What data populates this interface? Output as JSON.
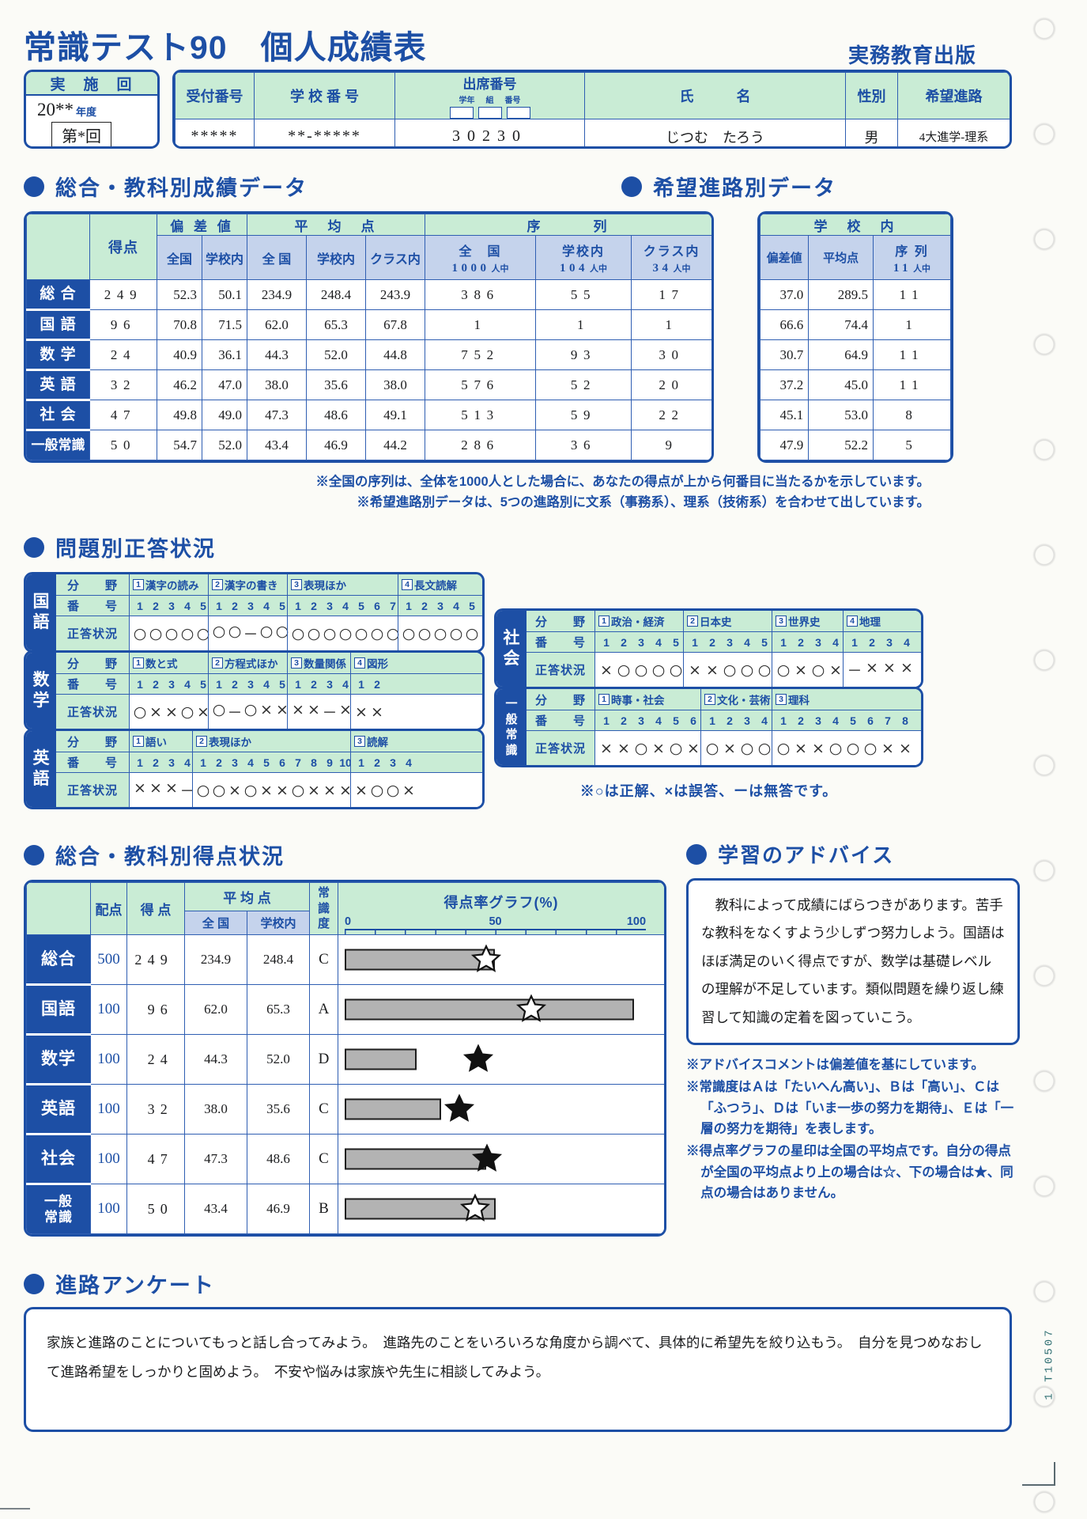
{
  "page": {
    "title": "常識テスト90　個人成績表",
    "publisher": "実務教育出版",
    "side_code": "1 T10507"
  },
  "round_box": {
    "label": "実　施　回",
    "year": "20**",
    "year_unit": "年度",
    "round": "第*回"
  },
  "id_table": {
    "col_reception": "受付番号",
    "col_school": "学 校 番 号",
    "col_attendance": "出席番号",
    "sub_grade": "学年",
    "sub_class": "組",
    "sub_number": "番号",
    "col_name": "氏　　　名",
    "col_sex": "性別",
    "col_course": "希望進路",
    "reception": "*****",
    "school": "**-*****",
    "attendance": "30230",
    "name": "じつむ　たろう",
    "sex": "男",
    "course": "4大進学-理系"
  },
  "seiseki": {
    "title": "総合・教科別成績データ",
    "h": {
      "tokuten": "得点",
      "hensachi": "偏 差 値",
      "heikin": "平　均　点",
      "joretsu": "序　　　列",
      "zenkoku": "全国",
      "gakkonai": "学校内",
      "zenkoku2": "全 国",
      "gakkonai2": "学校内",
      "kurasunai": "クラス内",
      "jo1": {
        "label": "全　国",
        "n": "1000",
        "unit": "人中"
      },
      "jo2": {
        "label": "学校内",
        "n": "104",
        "unit": "人中"
      },
      "jo3": {
        "label": "クラス内",
        "n": "34",
        "unit": "人中"
      }
    },
    "rows": [
      {
        "subject": "総 合",
        "tokuten": "249",
        "hz": "52.3",
        "hg": "50.1",
        "az": "234.9",
        "ag": "248.4",
        "ac": "243.9",
        "jz": "386",
        "jg": "55",
        "jc": "17"
      },
      {
        "subject": "国 語",
        "tokuten": "96",
        "hz": "70.8",
        "hg": "71.5",
        "az": "62.0",
        "ag": "65.3",
        "ac": "67.8",
        "jz": "1",
        "jg": "1",
        "jc": "1"
      },
      {
        "subject": "数 学",
        "tokuten": "24",
        "hz": "40.9",
        "hg": "36.1",
        "az": "44.3",
        "ag": "52.0",
        "ac": "44.8",
        "jz": "752",
        "jg": "93",
        "jc": "30"
      },
      {
        "subject": "英 語",
        "tokuten": "32",
        "hz": "46.2",
        "hg": "47.0",
        "az": "38.0",
        "ag": "35.6",
        "ac": "38.0",
        "jz": "576",
        "jg": "52",
        "jc": "20"
      },
      {
        "subject": "社 会",
        "tokuten": "47",
        "hz": "49.8",
        "hg": "49.0",
        "az": "47.3",
        "ag": "48.6",
        "ac": "49.1",
        "jz": "513",
        "jg": "59",
        "jc": "22"
      },
      {
        "subject": "一般常識",
        "tokuten": "50",
        "hz": "54.7",
        "hg": "52.0",
        "az": "43.4",
        "ag": "46.9",
        "ac": "44.2",
        "jz": "286",
        "jg": "36",
        "jc": "9"
      }
    ]
  },
  "shinro": {
    "title": "希望進路別データ",
    "h": {
      "gakkonai": "学　校　内",
      "hensachi": "偏差値",
      "heikin": "平均点",
      "jo": {
        "label": "序 列",
        "n": "11",
        "unit": "人中"
      }
    },
    "rows": [
      {
        "hensachi": "37.0",
        "heikin": "289.5",
        "joretsu": "11"
      },
      {
        "hensachi": "66.6",
        "heikin": "74.4",
        "joretsu": "1"
      },
      {
        "hensachi": "30.7",
        "heikin": "64.9",
        "joretsu": "11"
      },
      {
        "hensachi": "37.2",
        "heikin": "45.0",
        "joretsu": "11"
      },
      {
        "hensachi": "45.1",
        "heikin": "53.0",
        "joretsu": "8"
      },
      {
        "hensachi": "47.9",
        "heikin": "52.2",
        "joretsu": "5"
      }
    ]
  },
  "notes1": {
    "line1": "※全国の序列は、全体を1000人とした場合に、あなたの得点が上から何番目に当たるかを示しています。",
    "line2": "※希望進路別データは、5つの進路別に文系（事務系）、理系（技術系）を合わせて出しています。"
  },
  "seito": {
    "title": "問題別正答状況",
    "row_labels": {
      "bunya": "分　　野",
      "bango": "番　　号",
      "seito": "正答状況"
    },
    "legend": "※○は正解、×は誤答、ーは無答です。",
    "blocks": [
      {
        "subject": "国語",
        "sections": [
          {
            "num": "1",
            "name": "漢字の読み",
            "nums": [
              "1",
              "2",
              "3",
              "4",
              "5"
            ],
            "marks": "○○○○○"
          },
          {
            "num": "2",
            "name": "漢字の書き",
            "nums": [
              "1",
              "2",
              "3",
              "4",
              "5"
            ],
            "marks": "○○－○○"
          },
          {
            "num": "3",
            "name": "表現ほか",
            "nums": [
              "1",
              "2",
              "3",
              "4",
              "5",
              "6",
              "7"
            ],
            "marks": "○○○○○○○"
          },
          {
            "num": "4",
            "name": "長文読解",
            "nums": [
              "1",
              "2",
              "3",
              "4",
              "5"
            ],
            "marks": "○○○○○"
          }
        ]
      },
      {
        "subject": "数学",
        "sections": [
          {
            "num": "1",
            "name": "数と式",
            "nums": [
              "1",
              "2",
              "3",
              "4",
              "5"
            ],
            "marks": "○××○×"
          },
          {
            "num": "2",
            "name": "方程式ほか",
            "nums": [
              "1",
              "2",
              "3",
              "4",
              "5"
            ],
            "marks": "○－○××"
          },
          {
            "num": "3",
            "name": "数量関係",
            "nums": [
              "1",
              "2",
              "3",
              "4"
            ],
            "marks": "××－×"
          },
          {
            "num": "4",
            "name": "図形",
            "nums": [
              "1",
              "2"
            ],
            "marks": "××"
          }
        ]
      },
      {
        "subject": "英語",
        "sections": [
          {
            "num": "1",
            "name": "語い",
            "nums": [
              "1",
              "2",
              "3",
              "4"
            ],
            "marks": "×××－"
          },
          {
            "num": "2",
            "name": "表現ほか",
            "nums": [
              "1",
              "2",
              "3",
              "4",
              "5",
              "6",
              "7",
              "8",
              "9",
              "10"
            ],
            "marks": "○○×○××○×××"
          },
          {
            "num": "3",
            "name": "読解",
            "nums": [
              "1",
              "2",
              "3",
              "4"
            ],
            "marks": "×○○×"
          }
        ]
      },
      {
        "subject": "社会",
        "sections": [
          {
            "num": "1",
            "name": "政治・経済",
            "nums": [
              "1",
              "2",
              "3",
              "4",
              "5"
            ],
            "marks": "×○○○○"
          },
          {
            "num": "2",
            "name": "日本史",
            "nums": [
              "1",
              "2",
              "3",
              "4",
              "5"
            ],
            "marks": "××○○○"
          },
          {
            "num": "3",
            "name": "世界史",
            "nums": [
              "1",
              "2",
              "3",
              "4"
            ],
            "marks": "○×○×"
          },
          {
            "num": "4",
            "name": "地理",
            "nums": [
              "1",
              "2",
              "3",
              "4"
            ],
            "marks": "－×××"
          }
        ]
      },
      {
        "subject": "一般常識",
        "sections": [
          {
            "num": "1",
            "name": "時事・社会",
            "nums": [
              "1",
              "2",
              "3",
              "4",
              "5",
              "6"
            ],
            "marks": "××○×○×"
          },
          {
            "num": "2",
            "name": "文化・芸術",
            "nums": [
              "1",
              "2",
              "3",
              "4"
            ],
            "marks": "○×○○"
          },
          {
            "num": "3",
            "name": "理科",
            "nums": [
              "1",
              "2",
              "3",
              "4",
              "5",
              "6",
              "7",
              "8"
            ],
            "marks": "○××○○○××"
          }
        ]
      }
    ]
  },
  "tokuten": {
    "title": "総合・教科別得点状況",
    "h": {
      "haiten": "配点",
      "tokuten": "得 点",
      "heikin": "平 均 点",
      "zenkoku": "全 国",
      "gakkonai": "学校内",
      "joshikido": "常識度",
      "graph": "得点率グラフ(%)",
      "s0": "0",
      "s50": "50",
      "s100": "100"
    },
    "chart_note": "bar = score rate (%), star = national average rate (%)",
    "rows": [
      {
        "subject": "総合",
        "haiten": "500",
        "tokuten": "249",
        "zenkoku": "234.9",
        "gakkonai": "248.4",
        "grade": "C",
        "rate": 49.8,
        "avg": 47.0,
        "star": "open"
      },
      {
        "subject": "国語",
        "haiten": "100",
        "tokuten": "96",
        "zenkoku": "62.0",
        "gakkonai": "65.3",
        "grade": "A",
        "rate": 96,
        "avg": 62.0,
        "star": "open"
      },
      {
        "subject": "数学",
        "haiten": "100",
        "tokuten": "24",
        "zenkoku": "44.3",
        "gakkonai": "52.0",
        "grade": "D",
        "rate": 24,
        "avg": 44.3,
        "star": "filled"
      },
      {
        "subject": "英語",
        "haiten": "100",
        "tokuten": "32",
        "zenkoku": "38.0",
        "gakkonai": "35.6",
        "grade": "C",
        "rate": 32,
        "avg": 38.0,
        "star": "filled"
      },
      {
        "subject": "社会",
        "haiten": "100",
        "tokuten": "47",
        "zenkoku": "47.3",
        "gakkonai": "48.6",
        "grade": "C",
        "rate": 47,
        "avg": 47.3,
        "star": "filled"
      },
      {
        "subject": "一般\n常識",
        "haiten": "100",
        "tokuten": "50",
        "zenkoku": "43.4",
        "gakkonai": "46.9",
        "grade": "B",
        "rate": 50,
        "avg": 43.4,
        "star": "open"
      }
    ]
  },
  "advice": {
    "title": "学習のアドバイス",
    "body": "教科によって成績にばらつきがあります。苦手な教科をなくすよう少しずつ努力しよう。国語はほぼ満足のいく得点ですが、数学は基礎レベルの理解が不足しています。類似問題を繰り返し練習して知識の定着を図っていこう。",
    "note1": "※アドバイスコメントは偏差値を基にしています。",
    "note2": "※常識度はＡは「たいへん高い」、Ｂは「高い」、Ｃは「ふつう」、Ｄは「いま一歩の努力を期待」、Ｅは「一層の努力を期待」を表します。",
    "note3": "※得点率グラフの星印は全国の平均点です。自分の得点が全国の平均点より上の場合は☆、下の場合は★、同点の場合はありません。"
  },
  "enquete": {
    "title": "進路アンケート",
    "body": "家族と進路のことについてもっと話し合ってみよう。　進路先のことをいろいろな角度から調べて、具体的に希望先を絞り込もう。　自分を見つめなおして進路希望をしっかりと固めよう。　不安や悩みは家族や先生に相談してみよう。"
  }
}
